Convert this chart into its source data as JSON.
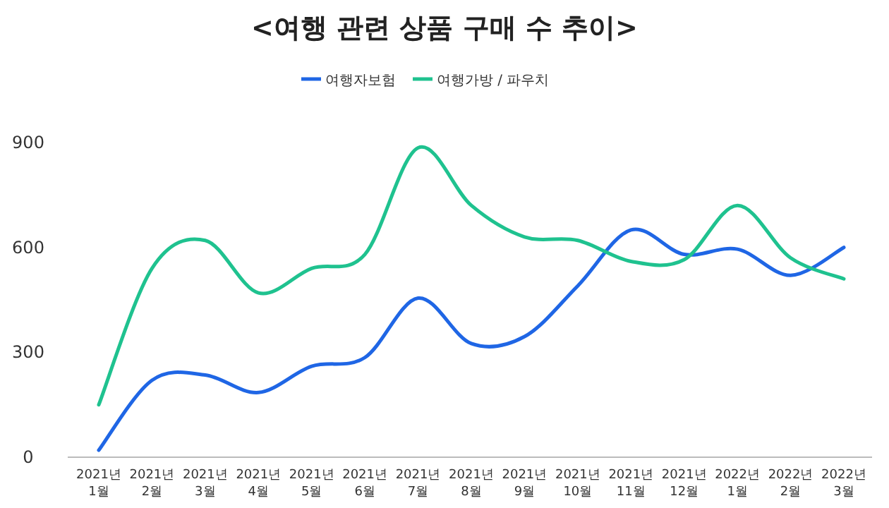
{
  "chart_data": {
    "type": "line",
    "title": "<여행 관련 상품 구매 수 추이>",
    "categories": [
      "2021년\n1월",
      "2021년\n2월",
      "2021년\n3월",
      "2021년\n4월",
      "2021년\n5월",
      "2021년\n6월",
      "2021년\n7월",
      "2021년\n8월",
      "2021년\n9월",
      "2021년\n10월",
      "2021년\n11월",
      "2021년\n12월",
      "2022년\n1월",
      "2022년\n2월",
      "2022년\n3월"
    ],
    "series": [
      {
        "name": "여행자보험",
        "color": "#1f66e5",
        "values": [
          20,
          220,
          235,
          185,
          260,
          285,
          455,
          325,
          345,
          490,
          650,
          580,
          595,
          520,
          600
        ]
      },
      {
        "name": "여행가방 / 파우치",
        "color": "#1fc28f",
        "values": [
          150,
          540,
          620,
          470,
          540,
          580,
          885,
          720,
          630,
          620,
          560,
          565,
          720,
          570,
          510
        ]
      }
    ],
    "ylim": [
      0,
      900
    ],
    "yticks": [
      0,
      300,
      600,
      900
    ],
    "grid": false,
    "legend": "top",
    "marker": "none",
    "line_style": "solid"
  }
}
